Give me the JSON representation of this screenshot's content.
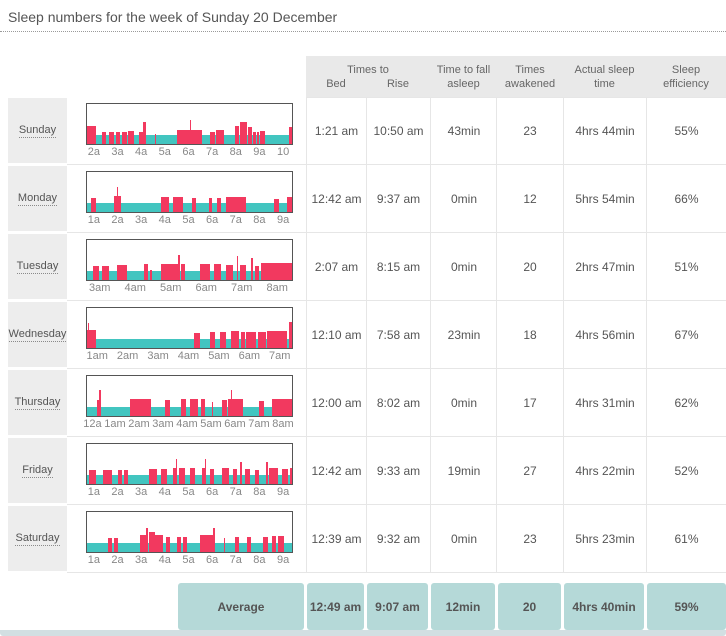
{
  "title": "Sleep numbers for the week of Sunday 20 December",
  "colors": {
    "awake": "#f2395f",
    "asleep": "#42c5c0",
    "average_bg": "#b5d9d8",
    "header_bg": "#e9e9e9"
  },
  "table": {
    "header": {
      "times_to": "Times to",
      "bed": "Bed",
      "rise": "Rise",
      "fall_asleep_1": "Time to fall",
      "fall_asleep_2": "asleep",
      "awakened_1": "Times",
      "awakened_2": "awakened",
      "actual_1": "Actual sleep",
      "actual_2": "time",
      "efficiency_1": "Sleep",
      "efficiency_2": "efficiency"
    },
    "rows": [
      {
        "day": "Sunday",
        "bed": "1:21 am",
        "rise": "10:50 am",
        "fall_asleep": "43min",
        "awakened": "23",
        "actual_sleep": "4hrs 44min",
        "efficiency": "55%",
        "axis": [
          "2a",
          "3a",
          "4a",
          "5a",
          "6a",
          "7a",
          "8a",
          "9a",
          "10"
        ],
        "bars": [
          [
            0,
            4.5,
            45
          ],
          [
            7.5,
            2,
            30
          ],
          [
            10.5,
            2.5,
            30
          ],
          [
            14,
            2,
            30
          ],
          [
            17,
            2.5,
            30
          ],
          [
            20,
            3,
            33
          ],
          [
            25.5,
            2,
            30
          ],
          [
            27.5,
            1.2,
            55
          ],
          [
            33,
            0.8,
            25
          ],
          [
            44,
            12,
            35
          ],
          [
            50,
            0.8,
            60
          ],
          [
            60,
            2.5,
            30
          ],
          [
            63,
            4,
            35
          ],
          [
            72,
            2,
            45
          ],
          [
            74.5,
            3.5,
            55
          ],
          [
            78.5,
            2,
            42
          ],
          [
            81,
            1.2,
            30
          ],
          [
            83,
            1,
            30
          ],
          [
            84.5,
            2.5,
            33
          ],
          [
            98.5,
            1.5,
            42
          ]
        ]
      },
      {
        "day": "Monday",
        "bed": "12:42 am",
        "rise": "9:37 am",
        "fall_asleep": "0min",
        "awakened": "12",
        "actual_sleep": "5hrs 54min",
        "efficiency": "66%",
        "axis": [
          "1a",
          "2a",
          "3a",
          "4a",
          "5a",
          "6a",
          "7a",
          "8a",
          "9a"
        ],
        "bars": [
          [
            2,
            2.5,
            35
          ],
          [
            13,
            3.5,
            40
          ],
          [
            14.5,
            0.7,
            62
          ],
          [
            36,
            4,
            38
          ],
          [
            42,
            5,
            38
          ],
          [
            51,
            2,
            35
          ],
          [
            59.5,
            1.5,
            35
          ],
          [
            63.5,
            2,
            35
          ],
          [
            68,
            9.5,
            38
          ],
          [
            91,
            2.5,
            33
          ],
          [
            97.5,
            2.5,
            38
          ]
        ]
      },
      {
        "day": "Tuesday",
        "bed": "2:07 am",
        "rise": "8:15 am",
        "fall_asleep": "0min",
        "awakened": "20",
        "actual_sleep": "2hrs 47min",
        "efficiency": "51%",
        "axis": [
          "3am",
          "4am",
          "5am",
          "6am",
          "7am",
          "8am"
        ],
        "bars": [
          [
            3,
            3,
            35
          ],
          [
            7.5,
            3,
            35
          ],
          [
            14.5,
            5,
            38
          ],
          [
            28,
            2,
            40
          ],
          [
            30.5,
            1,
            25
          ],
          [
            36,
            9,
            40
          ],
          [
            44.5,
            0.8,
            62
          ],
          [
            46,
            2,
            40
          ],
          [
            55,
            5,
            40
          ],
          [
            62,
            3.5,
            40
          ],
          [
            68,
            3,
            38
          ],
          [
            73,
            0.8,
            60
          ],
          [
            74.5,
            3,
            38
          ],
          [
            80,
            1,
            55
          ],
          [
            82,
            2,
            35
          ],
          [
            85,
            15,
            42
          ]
        ]
      },
      {
        "day": "Wednesday",
        "bed": "12:10 am",
        "rise": "7:58 am",
        "fall_asleep": "23min",
        "awakened": "18",
        "actual_sleep": "4hrs 56min",
        "efficiency": "67%",
        "axis": [
          "1am",
          "2am",
          "3am",
          "4am",
          "5am",
          "6am",
          "7am"
        ],
        "bars": [
          [
            0,
            4.5,
            45
          ],
          [
            0.5,
            0.6,
            62
          ],
          [
            52,
            3,
            38
          ],
          [
            60,
            2.5,
            40
          ],
          [
            65,
            3,
            40
          ],
          [
            70,
            4,
            42
          ],
          [
            75,
            2,
            40
          ],
          [
            77.5,
            5,
            40
          ],
          [
            83.5,
            4,
            40
          ],
          [
            88,
            9.5,
            42
          ],
          [
            98.5,
            1.3,
            65
          ]
        ]
      },
      {
        "day": "Thursday",
        "bed": "12:00 am",
        "rise": "8:02 am",
        "fall_asleep": "0min",
        "awakened": "17",
        "actual_sleep": "4hrs 31min",
        "efficiency": "62%",
        "axis": [
          "12a",
          "1am",
          "2am",
          "3am",
          "4am",
          "5am",
          "6am",
          "7am",
          "8am"
        ],
        "bars": [
          [
            5,
            2,
            40
          ],
          [
            6,
            0.6,
            65
          ],
          [
            21,
            10,
            42
          ],
          [
            38,
            2.5,
            40
          ],
          [
            46,
            2.5,
            42
          ],
          [
            50,
            4,
            42
          ],
          [
            55.5,
            2,
            42
          ],
          [
            61,
            0.6,
            35
          ],
          [
            66,
            2.5,
            40
          ],
          [
            69,
            7,
            42
          ],
          [
            70,
            0.7,
            65
          ],
          [
            84,
            2.5,
            38
          ],
          [
            90,
            10,
            42
          ]
        ]
      },
      {
        "day": "Friday",
        "bed": "12:42 am",
        "rise": "9:33 am",
        "fall_asleep": "19min",
        "awakened": "27",
        "actual_sleep": "4hrs 22min",
        "efficiency": "52%",
        "axis": [
          "1a",
          "2a",
          "3a",
          "4a",
          "5a",
          "6a",
          "7a",
          "8a",
          "9a"
        ],
        "bars": [
          [
            1,
            3.5,
            35
          ],
          [
            8,
            4,
            35
          ],
          [
            15,
            2,
            35
          ],
          [
            18,
            2,
            35
          ],
          [
            30,
            4,
            38
          ],
          [
            36,
            3,
            38
          ],
          [
            42,
            1.5,
            40
          ],
          [
            43.5,
            0.6,
            62
          ],
          [
            45,
            3,
            40
          ],
          [
            50,
            2.5,
            40
          ],
          [
            56,
            2,
            40
          ],
          [
            57.5,
            0.6,
            62
          ],
          [
            60,
            2,
            38
          ],
          [
            66,
            3.5,
            40
          ],
          [
            71,
            2,
            38
          ],
          [
            74.5,
            1,
            55
          ],
          [
            77,
            2.5,
            38
          ],
          [
            82,
            2,
            35
          ],
          [
            87.5,
            1,
            55
          ],
          [
            89,
            4,
            40
          ],
          [
            95,
            3,
            38
          ],
          [
            99,
            1,
            40
          ]
        ]
      },
      {
        "day": "Saturday",
        "bed": "12:39 am",
        "rise": "9:32 am",
        "fall_asleep": "0min",
        "awakened": "23",
        "actual_sleep": "5hrs 23min",
        "efficiency": "61%",
        "axis": [
          "1a",
          "2a",
          "3a",
          "4a",
          "5a",
          "6a",
          "7a",
          "8a",
          "9a"
        ],
        "bars": [
          [
            10,
            2,
            35
          ],
          [
            13,
            2,
            35
          ],
          [
            26,
            3,
            42
          ],
          [
            29,
            1,
            60
          ],
          [
            30,
            3,
            50
          ],
          [
            33,
            4,
            42
          ],
          [
            38.5,
            2,
            38
          ],
          [
            44,
            2,
            38
          ],
          [
            47,
            2,
            38
          ],
          [
            55,
            7,
            42
          ],
          [
            61.5,
            0.8,
            60
          ],
          [
            67,
            0.5,
            35
          ],
          [
            72,
            2,
            38
          ],
          [
            78,
            2,
            38
          ],
          [
            86,
            2.5,
            38
          ],
          [
            90,
            2,
            40
          ],
          [
            93,
            3,
            40
          ]
        ]
      }
    ],
    "average": {
      "label": "Average",
      "bed": "12:49 am",
      "rise": "9:07 am",
      "fall_asleep": "12min",
      "awakened": "20",
      "actual_sleep": "4hrs 40min",
      "efficiency": "59%"
    }
  }
}
